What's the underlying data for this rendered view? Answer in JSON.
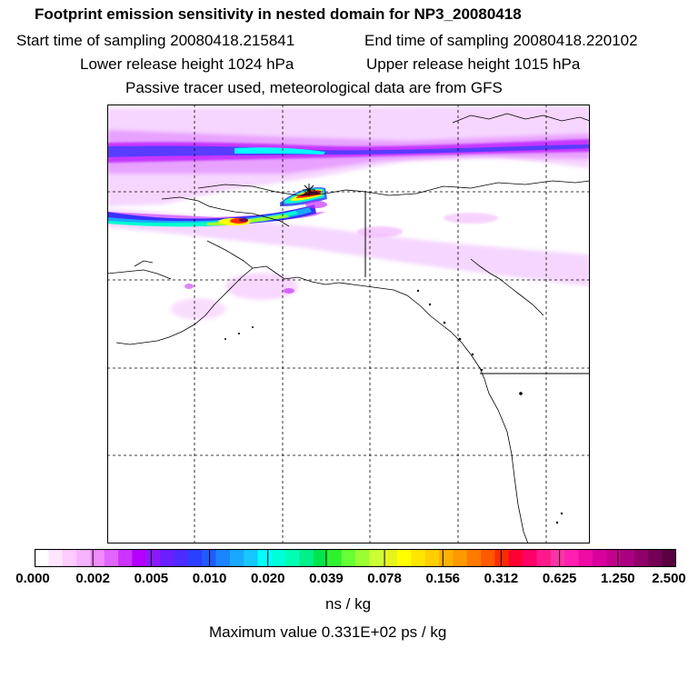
{
  "title": "Footprint emission sensitivity in nested domain for NP3_20080418",
  "start_time": "Start time of sampling 20080418.215841",
  "end_time": "End time of sampling 20080418.220102",
  "lower_height": "Lower release height 1024 hPa",
  "upper_height": "Upper release height 1015 hPa",
  "tracer_note": "Passive tracer used, meteorological data are from GFS",
  "colorbar": {
    "ticks": [
      "0.000",
      "0.002",
      "0.005",
      "0.010",
      "0.020",
      "0.039",
      "0.078",
      "0.156",
      "0.312",
      "0.625",
      "1.250",
      "2.500"
    ],
    "units": "ns / kg",
    "colors": [
      "#ffffff",
      "#ffe6ff",
      "#ffccff",
      "#f7b3ff",
      "#f08cff",
      "#e066ff",
      "#cc33ff",
      "#b300ff",
      "#8c1aff",
      "#6a1fff",
      "#4d2bff",
      "#2a3fff",
      "#1f5cff",
      "#1a85ff",
      "#19a8ff",
      "#15c8ff",
      "#00ffff",
      "#00ffd9",
      "#00ffb3",
      "#00f08a",
      "#00e64d",
      "#2ef22e",
      "#66ff33",
      "#99ff33",
      "#ccff33",
      "#e8f51a",
      "#ffff00",
      "#ffe600",
      "#ffd000",
      "#ffb300",
      "#ff9900",
      "#ff7a00",
      "#ff5a00",
      "#ff2a00",
      "#ff0033",
      "#ff0066",
      "#ff1a8c",
      "#ff33a8",
      "#ff1fb0",
      "#f00aa5",
      "#d9009c",
      "#c4008f",
      "#aa0080",
      "#8f006b",
      "#730055",
      "#5a0040"
    ]
  },
  "max_value": "Maximum value  0.331E+02 ps / kg"
}
